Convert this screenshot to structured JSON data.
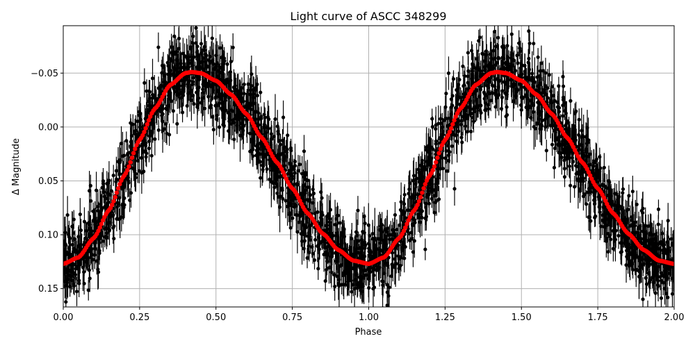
{
  "chart_data": {
    "type": "scatter",
    "title": "Light curve of ASCC 348299",
    "xlabel": "Phase",
    "ylabel": "Δ Magnitude",
    "xlim": [
      0,
      2
    ],
    "ylim": [
      0.167,
      -0.094
    ],
    "y_inverted": true,
    "grid": true,
    "x_ticks": [
      "0.00",
      "0.25",
      "0.50",
      "0.75",
      "1.00",
      "1.25",
      "1.50",
      "1.75",
      "2.00"
    ],
    "x_tick_values": [
      0,
      0.25,
      0.5,
      0.75,
      1.0,
      1.25,
      1.5,
      1.75,
      2.0
    ],
    "y_ticks": [
      "−0.05",
      "0.00",
      "0.05",
      "0.10",
      "0.15"
    ],
    "y_tick_values": [
      -0.05,
      0,
      0.05,
      0.1,
      0.15
    ],
    "series": [
      {
        "role": "observations with error bars",
        "color": "#000000",
        "marker": "circle"
      },
      {
        "role": "model curve",
        "color": "#ff0000",
        "phase": [
          0,
          0.05,
          0.1,
          0.15,
          0.2,
          0.25,
          0.3,
          0.35,
          0.4,
          0.42,
          0.45,
          0.5,
          0.55,
          0.6,
          0.65,
          0.7,
          0.75,
          0.8,
          0.85,
          0.9,
          0.95,
          1.0
        ],
        "delta_mag": [
          0.127,
          0.121,
          0.103,
          0.077,
          0.045,
          0.012,
          -0.017,
          -0.039,
          -0.05,
          -0.051,
          -0.05,
          -0.043,
          -0.03,
          -0.012,
          0.01,
          0.033,
          0.057,
          0.08,
          0.099,
          0.114,
          0.124,
          0.127
        ],
        "repeats_with_period": 1
      }
    ]
  }
}
